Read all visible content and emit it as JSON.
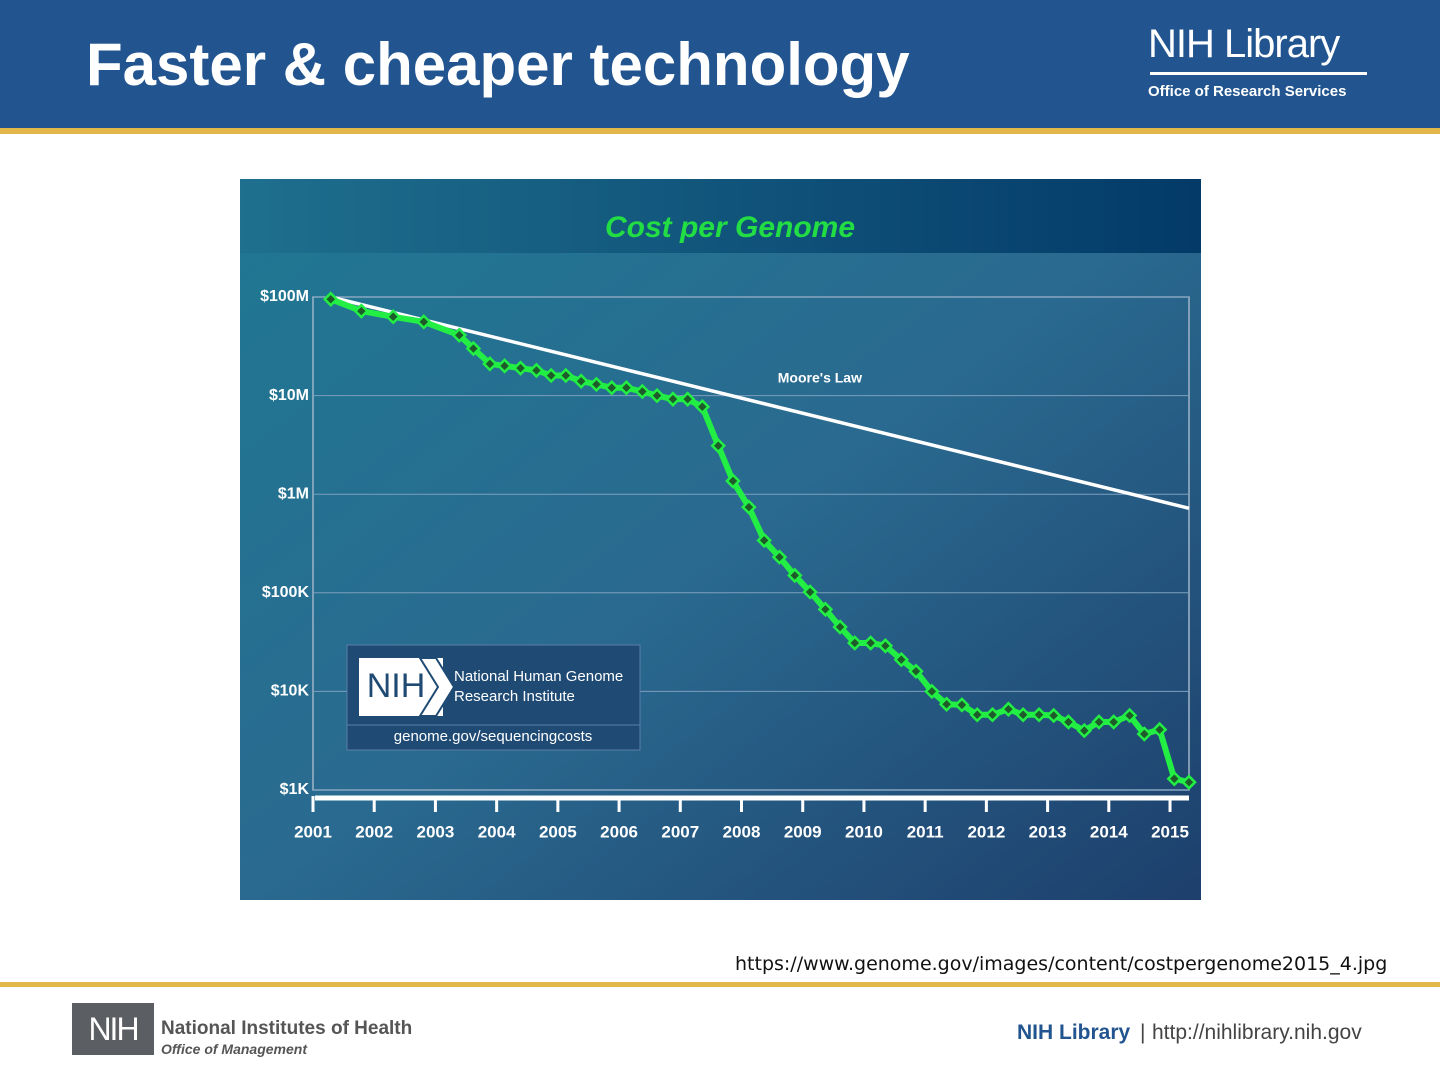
{
  "header": {
    "title": "Faster & cheaper technology",
    "brand": "NIH Library",
    "brand_subtitle": "Office of Research Services"
  },
  "chart_data": {
    "type": "line",
    "title": "Cost per Genome",
    "log_y": true,
    "grid": true,
    "xlim": [
      2001,
      2015.31
    ],
    "xticks": [
      2001,
      2002,
      2003,
      2004,
      2005,
      2006,
      2007,
      2008,
      2009,
      2010,
      2011,
      2012,
      2013,
      2014,
      2015
    ],
    "ylim": [
      1000,
      100000000
    ],
    "yticks": [
      {
        "value": 1000,
        "label": "$1K"
      },
      {
        "value": 10000,
        "label": "$10K"
      },
      {
        "value": 100000,
        "label": "$100K"
      },
      {
        "value": 1000000,
        "label": "$1M"
      },
      {
        "value": 10000000,
        "label": "$10M"
      },
      {
        "value": 100000000,
        "label": "$100M"
      }
    ],
    "series": [
      {
        "color": "#22ee44",
        "marker": true,
        "x": [
          2001.29,
          2001.79,
          2002.31,
          2002.81,
          2003.39,
          2003.62,
          2003.89,
          2004.13,
          2004.39,
          2004.65,
          2004.89,
          2005.13,
          2005.38,
          2005.63,
          2005.88,
          2006.12,
          2006.38,
          2006.62,
          2006.88,
          2007.12,
          2007.36,
          2007.62,
          2007.86,
          2008.12,
          2008.37,
          2008.62,
          2008.87,
          2009.12,
          2009.37,
          2009.61,
          2009.85,
          2010.11,
          2010.35,
          2010.61,
          2010.85,
          2011.11,
          2011.35,
          2011.6,
          2011.85,
          2012.1,
          2012.36,
          2012.6,
          2012.86,
          2013.1,
          2013.34,
          2013.6,
          2013.84,
          2014.08,
          2014.34,
          2014.58,
          2014.83,
          2015.07,
          2015.31
        ],
        "values": [
          95000000,
          72000000,
          63000000,
          56000000,
          41000000,
          30000000,
          21000000,
          20000000,
          19000000,
          18000000,
          16000000,
          16000000,
          14000000,
          13000000,
          12000000,
          12000000,
          11000000,
          10000000,
          9200000,
          9200000,
          7700000,
          3100000,
          1360000,
          740000,
          340000,
          230000,
          150000,
          102000,
          68000,
          45000,
          31000,
          31000,
          29000,
          21000,
          16000,
          10000,
          7400,
          7300,
          5800,
          5800,
          6600,
          5800,
          5800,
          5700,
          4900,
          4000,
          4900,
          4900,
          5700,
          3700,
          4100,
          1300,
          1200
        ]
      },
      {
        "name": "Moore's Law",
        "color": "#ffffff",
        "marker": false,
        "x": [
          2001.29,
          2015.31
        ],
        "values": [
          100000000,
          720000
        ]
      }
    ],
    "logo": {
      "mark": "NIH",
      "name": "National Human Genome Research Institute",
      "url": "genome.gov/sequencingcosts"
    }
  },
  "source_url": "https://www.genome.gov/images/content/costpergenome2015_4.jpg",
  "footer": {
    "nih_mark": "NIH",
    "nih_name": "National Institutes of Health",
    "nih_office": "Office of Management",
    "library": "NIH Library",
    "separator": "|",
    "site": "http://nihlibrary.nih.gov"
  }
}
